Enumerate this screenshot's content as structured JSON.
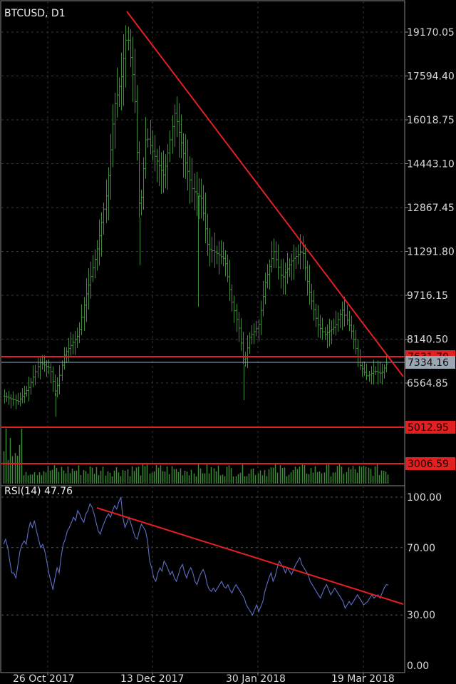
{
  "chart_data": {
    "type": "bar",
    "symbol_title": "BTCUSD, D1",
    "price_ticks": [
      "19170.05",
      "17594.40",
      "16018.75",
      "14443.10",
      "12867.45",
      "11291.80",
      "9716.15",
      "8140.50",
      "6564.85"
    ],
    "price_tick_values": [
      19170.05,
      17594.4,
      16018.75,
      14443.1,
      12867.45,
      11291.8,
      9716.15,
      8140.5,
      6564.85
    ],
    "price_range": [
      5200,
      20500
    ],
    "current_price": {
      "value": 7334.16,
      "label": "7334.16",
      "color": "#9aa7b3"
    },
    "horizontal_levels": [
      {
        "value": 7631.7,
        "label": "7631.70",
        "color": "#e32020"
      },
      {
        "value": 5012.95,
        "label": "5012.95",
        "color": "#e32020"
      },
      {
        "value": 3006.59,
        "label": "3006.59",
        "color": "#e32020"
      }
    ],
    "trendline_color": "#e32020",
    "bar_color": "#3f8a3a",
    "rsi_line_color": "#5d6fc4",
    "volume_color": "#3f8a3a",
    "date_labels": [
      "26 Oct 2017",
      "13 Dec 2017",
      "30 Jan 2018",
      "19 Mar 2018"
    ],
    "rsi": {
      "label": "RSI(14)",
      "value": "47.76",
      "ticks": [
        "100.00",
        "70.00",
        "30.00",
        "0.00"
      ],
      "tick_values": [
        100,
        70,
        30,
        0
      ],
      "values": [
        72,
        75,
        70,
        62,
        55,
        55,
        52,
        60,
        68,
        72,
        74,
        72,
        80,
        85,
        82,
        86,
        80,
        75,
        70,
        72,
        68,
        62,
        55,
        50,
        45,
        52,
        58,
        55,
        65,
        72,
        75,
        80,
        82,
        85,
        88,
        86,
        92,
        90,
        87,
        85,
        90,
        92,
        96,
        94,
        90,
        85,
        80,
        78,
        82,
        85,
        88,
        90,
        88,
        92,
        95,
        93,
        97,
        100,
        88,
        82,
        85,
        88,
        84,
        80,
        76,
        75,
        80,
        84,
        82,
        80,
        74,
        62,
        58,
        52,
        50,
        55,
        58,
        56,
        62,
        60,
        57,
        54,
        56,
        52,
        50,
        54,
        58,
        60,
        55,
        52,
        56,
        58,
        55,
        50,
        48,
        52,
        55,
        57,
        54,
        48,
        45,
        44,
        46,
        44,
        46,
        48,
        50,
        47,
        46,
        48,
        45,
        43,
        46,
        48,
        46,
        44,
        42,
        40,
        36,
        34,
        32,
        30,
        33,
        36,
        32,
        35,
        38,
        44,
        48,
        52,
        55,
        50,
        53,
        58,
        62,
        60,
        58,
        55,
        58,
        56,
        54,
        57,
        60,
        62,
        64,
        60,
        58,
        56,
        54,
        50,
        48,
        46,
        44,
        42,
        40,
        43,
        46,
        48,
        45,
        42,
        44,
        46,
        44,
        42,
        40,
        38,
        34,
        36,
        38,
        36,
        38,
        40,
        42,
        40,
        38,
        36,
        37,
        38,
        40,
        42,
        40,
        41,
        42,
        40,
        43,
        46,
        48,
        47.76
      ]
    }
  }
}
